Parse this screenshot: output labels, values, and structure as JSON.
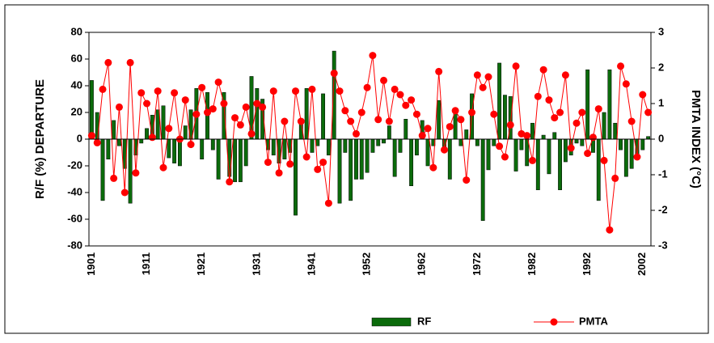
{
  "chart_data": {
    "type": "bar-line",
    "y_label": "R/F (%) DEPARTURE",
    "y2_label": "PMTA INDEX (°C)",
    "categories": [
      "1901",
      null,
      null,
      null,
      null,
      null,
      null,
      null,
      null,
      null,
      "1911",
      null,
      null,
      null,
      null,
      null,
      null,
      null,
      null,
      null,
      "1921",
      null,
      null,
      null,
      null,
      null,
      null,
      null,
      null,
      null,
      "1931",
      null,
      null,
      null,
      null,
      null,
      null,
      null,
      null,
      null,
      "1941",
      null,
      null,
      null,
      null,
      null,
      null,
      null,
      null,
      null,
      "1952",
      null,
      null,
      null,
      null,
      null,
      null,
      null,
      null,
      null,
      "1962",
      null,
      null,
      null,
      null,
      null,
      null,
      null,
      null,
      null,
      "1972",
      null,
      null,
      null,
      null,
      null,
      null,
      null,
      null,
      null,
      "1982",
      null,
      null,
      null,
      null,
      null,
      null,
      null,
      null,
      null,
      "1992",
      null,
      null,
      null,
      null,
      null,
      null,
      null,
      null,
      null,
      "2002",
      null
    ],
    "series": [
      {
        "name": "RF",
        "type": "bar",
        "color": "#0b6b0b",
        "values": [
          44,
          20,
          -46,
          -15,
          14,
          -5,
          -22,
          -48,
          -12,
          -3,
          8,
          18,
          22,
          25,
          -14,
          -18,
          -20,
          10,
          22,
          38,
          -15,
          35,
          -8,
          -30,
          35,
          -28,
          -32,
          -32,
          -20,
          47,
          38,
          30,
          -8,
          -12,
          -18,
          -15,
          -10,
          -57,
          12,
          38,
          -10,
          -5,
          34,
          -12,
          66,
          -48,
          -10,
          -46,
          -30,
          -30,
          -25,
          -10,
          -5,
          -3,
          10,
          -28,
          -10,
          15,
          -35,
          -12,
          14,
          -20,
          -5,
          29,
          -8,
          -30,
          23,
          -5,
          7,
          34,
          -5,
          -61,
          -23,
          -5,
          57,
          33,
          32,
          -24,
          -8,
          -20,
          12,
          -38,
          3,
          -26,
          5,
          -38,
          -17,
          -12,
          -3,
          -5,
          52,
          -10,
          -46,
          20,
          52,
          12,
          -8,
          -28,
          -22,
          -15,
          -8,
          2
        ]
      },
      {
        "name": "PMTA",
        "type": "line",
        "axis": "y2",
        "color": "#ff0000",
        "values": [
          0.1,
          -0.1,
          1.4,
          2.15,
          -1.1,
          0.9,
          -1.5,
          2.15,
          -0.95,
          1.3,
          1.0,
          0.05,
          1.35,
          -0.8,
          0.3,
          1.3,
          0.0,
          1.1,
          -0.15,
          0.7,
          1.45,
          0.75,
          0.85,
          1.6,
          1.0,
          -1.2,
          0.6,
          0.4,
          0.9,
          0.15,
          1.0,
          0.9,
          -0.65,
          1.35,
          -0.95,
          0.5,
          -0.7,
          1.35,
          0.5,
          -0.5,
          1.4,
          -0.85,
          -0.65,
          -1.8,
          1.85,
          1.35,
          0.8,
          0.5,
          0.15,
          0.75,
          1.45,
          2.35,
          0.55,
          1.65,
          0.5,
          1.4,
          1.25,
          0.95,
          1.1,
          0.7,
          0.1,
          0.3,
          -0.8,
          1.9,
          -0.3,
          0.35,
          0.8,
          0.55,
          -1.15,
          0.75,
          1.8,
          1.45,
          1.75,
          0.7,
          -0.2,
          -0.5,
          0.4,
          2.05,
          0.15,
          0.1,
          -0.6,
          1.2,
          1.95,
          1.1,
          0.6,
          0.75,
          1.8,
          -0.25,
          0.45,
          0.75,
          -0.4,
          0.05,
          0.85,
          -0.6,
          -2.55,
          -1.1,
          2.05,
          1.55,
          0.5,
          -0.5,
          1.25,
          0.75
        ]
      }
    ],
    "ylim": [
      -80,
      80
    ],
    "yticks": [
      -80,
      -60,
      -40,
      -20,
      0,
      20,
      40,
      60,
      80
    ],
    "y2lim": [
      -3,
      3
    ],
    "y2ticks": [
      -3,
      -2,
      -1,
      0,
      1,
      2,
      3
    ],
    "legend": "bottom"
  }
}
